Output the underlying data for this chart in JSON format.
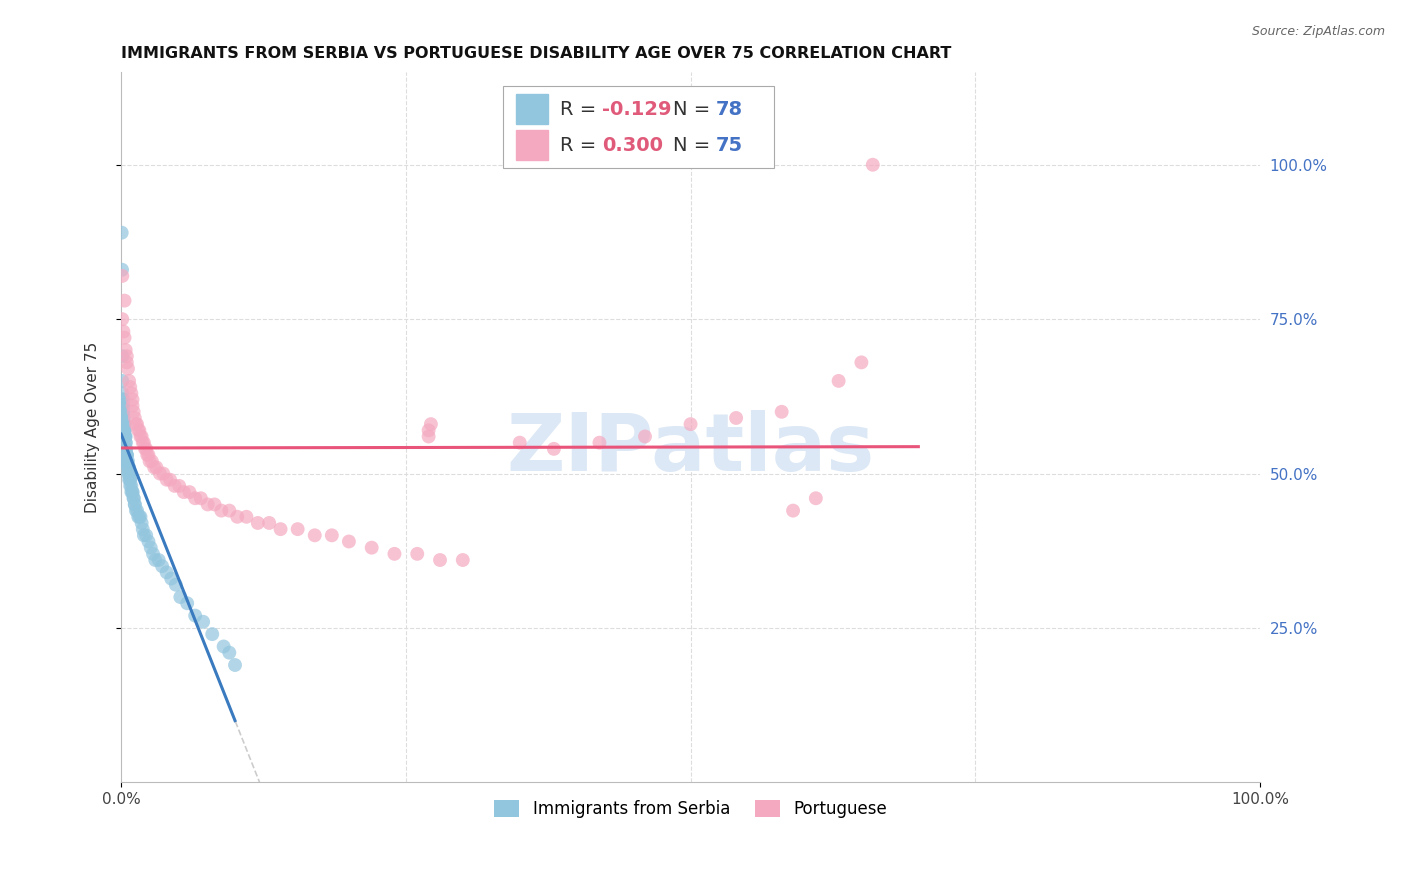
{
  "title": "IMMIGRANTS FROM SERBIA VS PORTUGUESE DISABILITY AGE OVER 75 CORRELATION CHART",
  "source": "Source: ZipAtlas.com",
  "ylabel": "Disability Age Over 75",
  "legend_label1": "Immigrants from Serbia",
  "legend_label2": "Portuguese",
  "color_serbia": "#92c5de",
  "color_portuguese": "#f4a9c0",
  "color_line_serbia": "#3a7abf",
  "color_line_portuguese": "#e8547a",
  "color_dashed_line": "#c0c0c0",
  "watermark": "ZIPatlas",
  "watermark_color": "#dce8f5",
  "background_color": "#ffffff",
  "grid_color": "#dddddd",
  "serbia_x": [
    0.0005,
    0.0008,
    0.001,
    0.001,
    0.001,
    0.0012,
    0.0015,
    0.0015,
    0.002,
    0.002,
    0.002,
    0.002,
    0.002,
    0.0022,
    0.0025,
    0.003,
    0.003,
    0.003,
    0.003,
    0.003,
    0.003,
    0.003,
    0.0035,
    0.004,
    0.004,
    0.004,
    0.004,
    0.0045,
    0.005,
    0.005,
    0.005,
    0.005,
    0.005,
    0.006,
    0.006,
    0.006,
    0.006,
    0.007,
    0.007,
    0.007,
    0.007,
    0.008,
    0.008,
    0.008,
    0.009,
    0.009,
    0.01,
    0.01,
    0.011,
    0.011,
    0.012,
    0.012,
    0.013,
    0.014,
    0.015,
    0.016,
    0.017,
    0.018,
    0.019,
    0.02,
    0.022,
    0.024,
    0.026,
    0.028,
    0.03,
    0.033,
    0.036,
    0.04,
    0.044,
    0.048,
    0.052,
    0.058,
    0.065,
    0.072,
    0.08,
    0.09,
    0.095,
    0.1
  ],
  "serbia_y": [
    0.89,
    0.83,
    0.69,
    0.65,
    0.63,
    0.62,
    0.61,
    0.6,
    0.62,
    0.61,
    0.6,
    0.6,
    0.59,
    0.59,
    0.58,
    0.58,
    0.58,
    0.57,
    0.57,
    0.57,
    0.56,
    0.56,
    0.56,
    0.56,
    0.55,
    0.55,
    0.54,
    0.54,
    0.53,
    0.53,
    0.53,
    0.52,
    0.52,
    0.52,
    0.51,
    0.51,
    0.5,
    0.51,
    0.5,
    0.5,
    0.49,
    0.49,
    0.49,
    0.48,
    0.48,
    0.47,
    0.47,
    0.47,
    0.46,
    0.46,
    0.45,
    0.45,
    0.44,
    0.44,
    0.43,
    0.43,
    0.43,
    0.42,
    0.41,
    0.4,
    0.4,
    0.39,
    0.38,
    0.37,
    0.36,
    0.36,
    0.35,
    0.34,
    0.33,
    0.32,
    0.3,
    0.29,
    0.27,
    0.26,
    0.24,
    0.22,
    0.21,
    0.19
  ],
  "portuguese_x": [
    0.001,
    0.001,
    0.002,
    0.003,
    0.003,
    0.004,
    0.005,
    0.005,
    0.006,
    0.007,
    0.008,
    0.009,
    0.01,
    0.01,
    0.011,
    0.012,
    0.013,
    0.014,
    0.015,
    0.016,
    0.017,
    0.018,
    0.019,
    0.02,
    0.021,
    0.022,
    0.023,
    0.024,
    0.025,
    0.027,
    0.029,
    0.031,
    0.034,
    0.037,
    0.04,
    0.043,
    0.047,
    0.051,
    0.055,
    0.06,
    0.065,
    0.07,
    0.076,
    0.082,
    0.088,
    0.095,
    0.102,
    0.11,
    0.12,
    0.13,
    0.14,
    0.155,
    0.17,
    0.185,
    0.2,
    0.22,
    0.24,
    0.26,
    0.28,
    0.3,
    0.27,
    0.27,
    0.272,
    0.35,
    0.38,
    0.42,
    0.46,
    0.5,
    0.54,
    0.58,
    0.59,
    0.61,
    0.63,
    0.65,
    0.66
  ],
  "portuguese_y": [
    0.82,
    0.75,
    0.73,
    0.78,
    0.72,
    0.7,
    0.69,
    0.68,
    0.67,
    0.65,
    0.64,
    0.63,
    0.62,
    0.61,
    0.6,
    0.59,
    0.58,
    0.58,
    0.57,
    0.57,
    0.56,
    0.56,
    0.55,
    0.55,
    0.54,
    0.54,
    0.53,
    0.53,
    0.52,
    0.52,
    0.51,
    0.51,
    0.5,
    0.5,
    0.49,
    0.49,
    0.48,
    0.48,
    0.47,
    0.47,
    0.46,
    0.46,
    0.45,
    0.45,
    0.44,
    0.44,
    0.43,
    0.43,
    0.42,
    0.42,
    0.41,
    0.41,
    0.4,
    0.4,
    0.39,
    0.38,
    0.37,
    0.37,
    0.36,
    0.36,
    0.56,
    0.57,
    0.58,
    0.55,
    0.54,
    0.55,
    0.56,
    0.58,
    0.59,
    0.6,
    0.44,
    0.46,
    0.65,
    0.68,
    1.0
  ],
  "xlim": [
    0.0,
    1.0
  ],
  "ylim": [
    0.0,
    1.15
  ],
  "title_fontsize": 11.5,
  "axis_label_fontsize": 11,
  "tick_fontsize": 11,
  "legend_fontsize": 14,
  "watermark_fontsize": 58
}
